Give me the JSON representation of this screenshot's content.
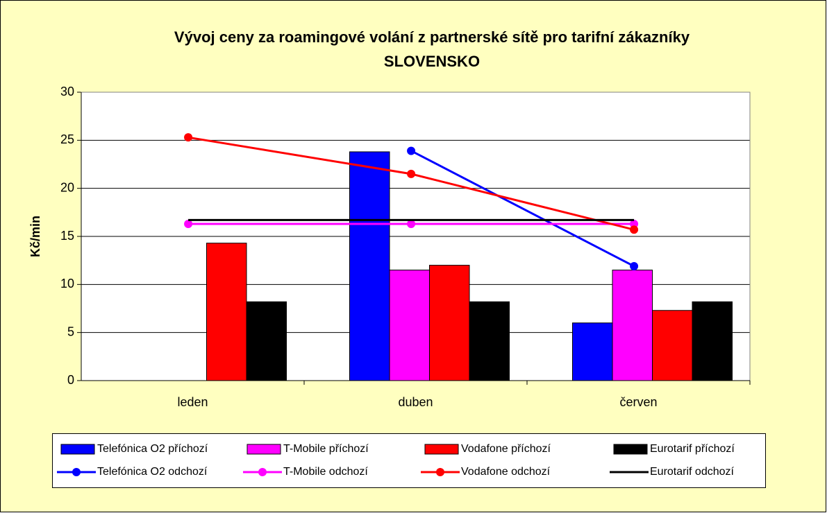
{
  "chart_data": {
    "type": "combo",
    "title": "Vývoj ceny za roamingové volání z partnerské sítě pro tarifní zákazníky",
    "subtitle": "SLOVENSKO",
    "ylabel": "Kč/min",
    "categories": [
      "leden",
      "duben",
      "červen"
    ],
    "ylim": [
      0,
      30
    ],
    "yticks": [
      0,
      5,
      10,
      15,
      20,
      25,
      30
    ],
    "grid": true,
    "legend": "bottom",
    "series": [
      {
        "name": "Telefónica O2 příchozí",
        "type": "bar",
        "color": "#0000ff",
        "values": [
          null,
          23.8,
          6.0
        ]
      },
      {
        "name": "T-Mobile příchozí",
        "type": "bar",
        "color": "#ff00ff",
        "values": [
          null,
          11.5,
          11.5
        ]
      },
      {
        "name": "Vodafone příchozí",
        "type": "bar",
        "color": "#ff0000",
        "values": [
          14.3,
          12.0,
          7.3
        ]
      },
      {
        "name": "Eurotarif příchozí",
        "type": "bar",
        "color": "#000000",
        "values": [
          8.2,
          8.2,
          8.2
        ]
      },
      {
        "name": "Telefónica O2 odchozí",
        "type": "line",
        "marker": true,
        "color": "#0000ff",
        "values": [
          null,
          23.9,
          11.9
        ]
      },
      {
        "name": "T-Mobile odchozí",
        "type": "line",
        "marker": true,
        "color": "#ff00ff",
        "values": [
          16.3,
          16.3,
          16.3
        ]
      },
      {
        "name": "Vodafone odchozí",
        "type": "line",
        "marker": true,
        "color": "#ff0000",
        "values": [
          25.3,
          21.5,
          15.7
        ]
      },
      {
        "name": "Eurotarif odchozí",
        "type": "line",
        "marker": false,
        "color": "#000000",
        "values": [
          16.7,
          16.7,
          16.7
        ]
      }
    ]
  }
}
